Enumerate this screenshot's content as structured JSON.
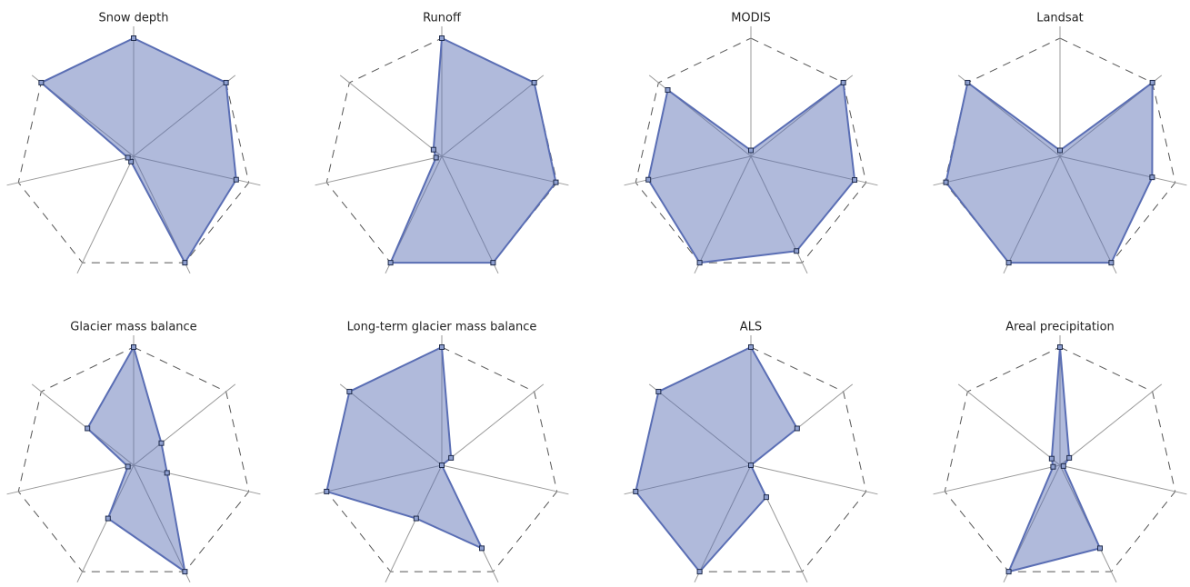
{
  "chart_data": [
    {
      "type": "radar",
      "title": "Snow depth",
      "values": [
        1.0,
        1.0,
        0.89,
        1.0,
        0.05,
        0.05,
        1.0
      ],
      "color": "#5a6eb4",
      "rlim": [
        0,
        1
      ]
    },
    {
      "type": "radar",
      "title": "Runoff",
      "values": [
        1.0,
        1.0,
        0.99,
        1.0,
        1.0,
        0.05,
        0.09
      ],
      "color": "#5a6eb4",
      "rlim": [
        0,
        1
      ]
    },
    {
      "type": "radar",
      "title": "MODIS",
      "values": [
        0.05,
        1.0,
        0.9,
        0.89,
        1.0,
        0.89,
        0.9
      ],
      "color": "#5a6eb4",
      "rlim": [
        0,
        1
      ]
    },
    {
      "type": "radar",
      "title": "Landsat",
      "values": [
        0.05,
        1.0,
        0.8,
        1.0,
        1.0,
        0.99,
        1.0
      ],
      "color": "#5a6eb4",
      "rlim": [
        0,
        1
      ]
    },
    {
      "type": "radar",
      "title": "Glacier mass balance",
      "values": [
        1.0,
        0.3,
        0.29,
        1.0,
        0.5,
        0.05,
        0.5
      ],
      "color": "#5a6eb4",
      "rlim": [
        0,
        1
      ]
    },
    {
      "type": "radar",
      "title": "Long-term glacier mass balance",
      "values": [
        1.0,
        0.1,
        0,
        0.78,
        0.5,
        1.0,
        1.0
      ],
      "color": "#5a6eb4",
      "rlim": [
        0,
        1
      ]
    },
    {
      "type": "radar",
      "title": "ALS",
      "values": [
        1.0,
        0.5,
        0,
        0.3,
        1.0,
        1.0,
        1.0
      ],
      "color": "#5a6eb4",
      "rlim": [
        0,
        1
      ]
    },
    {
      "type": "radar",
      "title": "Areal precipitation",
      "values": [
        1.0,
        0.1,
        0.03,
        0.78,
        1.0,
        0.06,
        0.09
      ],
      "color": "#5a6eb4",
      "rlim": [
        0,
        1
      ]
    }
  ]
}
